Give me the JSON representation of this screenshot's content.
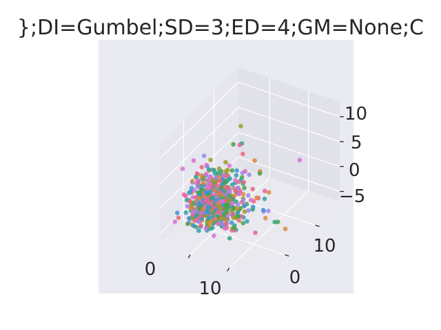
{
  "chart_data": {
    "type": "scatter",
    "projection": "3d",
    "title": "};DI=Gumbel;SD=3;ED=4;GM=None;C",
    "xlabel": "",
    "ylabel": "",
    "zlabel": "",
    "x_ticks": [
      "0",
      "10"
    ],
    "y_ticks": [
      "0",
      "10"
    ],
    "z_ticks": [
      "10",
      "5",
      "0",
      "−5"
    ],
    "xlim": [
      -8,
      18
    ],
    "ylim": [
      -8,
      18
    ],
    "zlim": [
      -7,
      13
    ],
    "grid": true,
    "legend": "none",
    "point_count": 600,
    "distribution": "Gumbel",
    "point_colors": [
      "#e7697a",
      "#d98a3a",
      "#9a9a2e",
      "#4aa04a",
      "#2fa37e",
      "#2fa0b0",
      "#3b95d6",
      "#9a87e8",
      "#d96fd6",
      "#e9619e"
    ],
    "visible_outliers": [
      {
        "x": 14,
        "y": 10,
        "z": 5
      },
      {
        "x": 15,
        "y": 4,
        "z": -5
      },
      {
        "x": 12,
        "y": -2,
        "z": -3
      },
      {
        "x": 10,
        "y": 2,
        "z": 6
      },
      {
        "x": 2,
        "y": 6,
        "z": 11
      }
    ]
  }
}
